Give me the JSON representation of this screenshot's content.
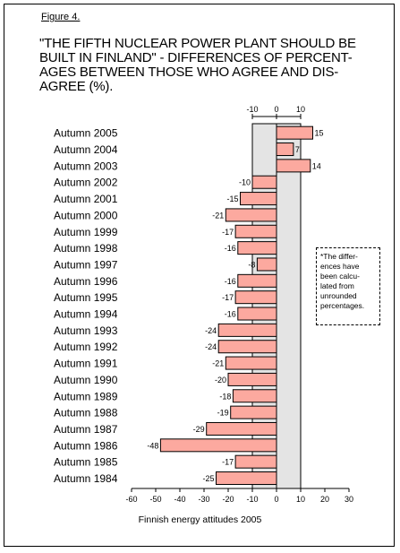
{
  "figure_label": "Figure 4.",
  "footer": "Finnish energy attitudes 2005",
  "note": "*The differ- ences have been calcu- lated from unrounded percentages.",
  "colors": {
    "bar": "#fca99f",
    "band": "#e4e4e4",
    "axis": "#000000"
  },
  "chart_data": {
    "type": "bar",
    "orientation": "horizontal",
    "title": "\"THE FIFTH NUCLEAR POWER PLANT SHOULD BE BUILT IN FINLAND\" - DIFFERENCES OF PERCENT- AGES BETWEEN THOSE WHO AGREE AND DIS- AGREE (%).",
    "categories": [
      "Autumn 2005",
      "Autumn 2004",
      "Autumn 2003",
      "Autumn 2002",
      "Autumn 2001",
      "Autumn 2000",
      "Autumn 1999",
      "Autumn 1998",
      "Autumn 1997",
      "Autumn 1996",
      "Autumn 1995",
      "Autumn 1994",
      "Autumn 1993",
      "Autumn 1992",
      "Autumn 1991",
      "Autumn 1990",
      "Autumn 1989",
      "Autumn 1988",
      "Autumn 1987",
      "Autumn 1986",
      "Autumn 1985",
      "Autumn 1984"
    ],
    "values": [
      15,
      7,
      14,
      -10,
      -15,
      -21,
      -17,
      -16,
      -8,
      -16,
      -17,
      -16,
      -24,
      -24,
      -21,
      -20,
      -18,
      -19,
      -29,
      -48,
      -17,
      -25
    ],
    "xlim": [
      -60,
      30
    ],
    "x_ticks": [
      -60,
      -50,
      -40,
      -30,
      -20,
      -10,
      0,
      10,
      20,
      30
    ],
    "top_ticks": [
      -10,
      0,
      10
    ],
    "shaded_band": [
      -10,
      10
    ],
    "grid": false
  }
}
